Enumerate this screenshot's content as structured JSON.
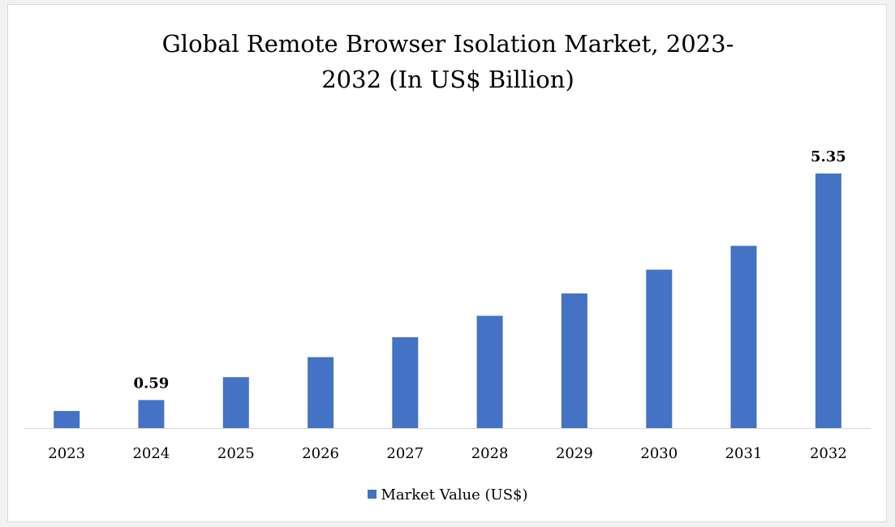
{
  "chart_data": {
    "type": "bar",
    "title_lines": [
      "Global Remote Browser Isolation Market, 2023-",
      "2032 (In US$ Billion)"
    ],
    "categories": [
      "2023",
      "2024",
      "2025",
      "2026",
      "2027",
      "2028",
      "2029",
      "2030",
      "2031",
      "2032"
    ],
    "series": [
      {
        "name": "Market Value (US$)",
        "color": "#4472c4",
        "values": [
          0.36,
          0.59,
          1.07,
          1.49,
          1.91,
          2.36,
          2.83,
          3.33,
          3.83,
          5.35
        ]
      }
    ],
    "data_labels": [
      {
        "category": "2024",
        "text": "0.59"
      },
      {
        "category": "2032",
        "text": "5.35"
      }
    ],
    "ylim": [
      0,
      5.35
    ],
    "y_axis_visible": false,
    "grid": false,
    "legend_position": "bottom"
  }
}
